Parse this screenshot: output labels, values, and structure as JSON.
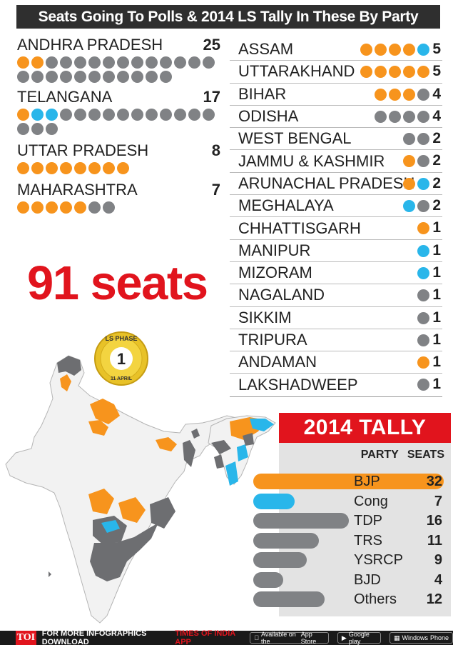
{
  "title": "Seats Going To Polls & 2014 LS Tally In These By Party",
  "total_seats_label": "91 seats",
  "badge": {
    "top": "LS PHASE",
    "number": "1",
    "bottom": "11 APRIL"
  },
  "colors": {
    "BJP": "#f7941d",
    "Cong": "#29b6ea",
    "Other": "#808285",
    "accent": "#e1141d"
  },
  "chart_data": [
    {
      "type": "dot-matrix",
      "title": "Seats Going To Polls & 2014 LS Tally In These By Party",
      "legend": "none",
      "states": [
        {
          "name": "ANDHRA PRADESH",
          "seats": 25,
          "bjp": 2,
          "cong": 0,
          "other": 23
        },
        {
          "name": "TELANGANA",
          "seats": 17,
          "bjp": 1,
          "cong": 2,
          "other": 14
        },
        {
          "name": "UTTAR PRADESH",
          "seats": 8,
          "bjp": 8,
          "cong": 0,
          "other": 0
        },
        {
          "name": "MAHARASHTRA",
          "seats": 7,
          "bjp": 5,
          "cong": 0,
          "other": 2
        },
        {
          "name": "ASSAM",
          "seats": 5,
          "bjp": 4,
          "cong": 1,
          "other": 0
        },
        {
          "name": "UTTARAKHAND",
          "seats": 5,
          "bjp": 5,
          "cong": 0,
          "other": 0
        },
        {
          "name": "BIHAR",
          "seats": 4,
          "bjp": 3,
          "cong": 0,
          "other": 1
        },
        {
          "name": "ODISHA",
          "seats": 4,
          "bjp": 0,
          "cong": 0,
          "other": 4
        },
        {
          "name": "WEST BENGAL",
          "seats": 2,
          "bjp": 0,
          "cong": 0,
          "other": 2
        },
        {
          "name": "JAMMU & KASHMIR",
          "seats": 2,
          "bjp": 1,
          "cong": 0,
          "other": 1
        },
        {
          "name": "ARUNACHAL PRADESH",
          "seats": 2,
          "bjp": 1,
          "cong": 1,
          "other": 0
        },
        {
          "name": "MEGHALAYA",
          "seats": 2,
          "bjp": 0,
          "cong": 1,
          "other": 1
        },
        {
          "name": "CHHATTISGARH",
          "seats": 1,
          "bjp": 1,
          "cong": 0,
          "other": 0
        },
        {
          "name": "MANIPUR",
          "seats": 1,
          "bjp": 0,
          "cong": 1,
          "other": 0
        },
        {
          "name": "MIZORAM",
          "seats": 1,
          "bjp": 0,
          "cong": 1,
          "other": 0
        },
        {
          "name": "NAGALAND",
          "seats": 1,
          "bjp": 0,
          "cong": 0,
          "other": 1
        },
        {
          "name": "SIKKIM",
          "seats": 1,
          "bjp": 0,
          "cong": 0,
          "other": 1
        },
        {
          "name": "TRIPURA",
          "seats": 1,
          "bjp": 0,
          "cong": 0,
          "other": 1
        },
        {
          "name": "ANDAMAN",
          "seats": 1,
          "bjp": 1,
          "cong": 0,
          "other": 0
        },
        {
          "name": "LAKSHADWEEP",
          "seats": 1,
          "bjp": 0,
          "cong": 0,
          "other": 1
        }
      ]
    },
    {
      "type": "bar",
      "title": "2014 TALLY",
      "column_headers": [
        "PARTY",
        "SEATS"
      ],
      "categories": [
        "BJP",
        "Cong",
        "TDP",
        "TRS",
        "YSRCP",
        "BJD",
        "Others"
      ],
      "values": [
        32,
        7,
        16,
        11,
        9,
        4,
        12
      ],
      "colors": [
        "#f7941d",
        "#29b6ea",
        "#808285",
        "#808285",
        "#808285",
        "#808285",
        "#808285"
      ],
      "xlim": [
        0,
        32
      ],
      "grid": false,
      "legend": "none"
    }
  ],
  "footer": {
    "logo": "TOI",
    "text": "FOR MORE INFOGRAPHICS DOWNLOAD",
    "app": "TIMES OF INDIA APP",
    "stores": [
      {
        "small": "Available on the",
        "name": "App Store"
      },
      {
        "small": "",
        "name": "Google play"
      },
      {
        "small": "Windows",
        "name": "Phone"
      }
    ]
  }
}
